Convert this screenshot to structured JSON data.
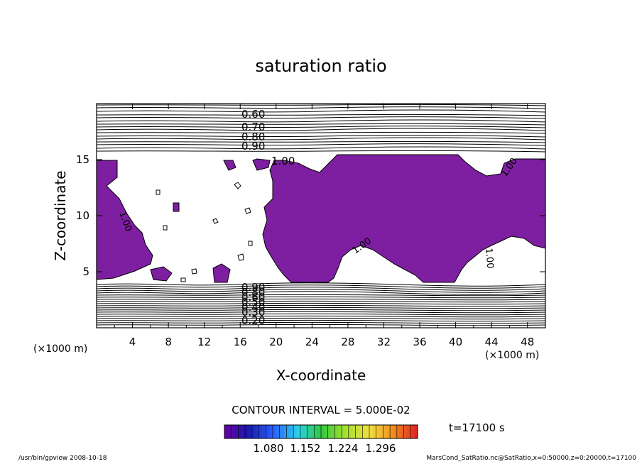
{
  "chart_data": {
    "type": "contour",
    "title": "saturation ratio",
    "xlabel": "X-coordinate",
    "ylabel": "Z-coordinate",
    "x_unit_label": "(×1000 m)",
    "z_unit_label": "(×1000 m)",
    "xlim": [
      0,
      50
    ],
    "ylim": [
      0,
      20
    ],
    "xticks": [
      4,
      8,
      12,
      16,
      20,
      24,
      28,
      32,
      36,
      40,
      44,
      48
    ],
    "yticks": [
      5,
      10,
      15
    ],
    "supersaturated_fill_color": "#7d1fa0",
    "contour_interval_label": "CONTOUR INTERVAL = 5.000E-02",
    "upper_contour_labels": [
      "0.60",
      "0.70",
      "0.80",
      "0.90",
      "1.00"
    ],
    "lower_contour_labels": [
      "0.90",
      "0.80",
      "0.60",
      "0.50",
      "0.40",
      "0.30",
      "0.20"
    ],
    "interior_contour_label": "1.00",
    "colorbar_labels": [
      "1.080",
      "1.152",
      "1.224",
      "1.296"
    ],
    "time_label": "t=17100 s",
    "footer_left": "/usr/bin/gpview   2008-10-18",
    "footer_right": "MarsCond_SatRatio.nc@SatRatio,x=0:50000,z=0:20000,t=17100"
  }
}
